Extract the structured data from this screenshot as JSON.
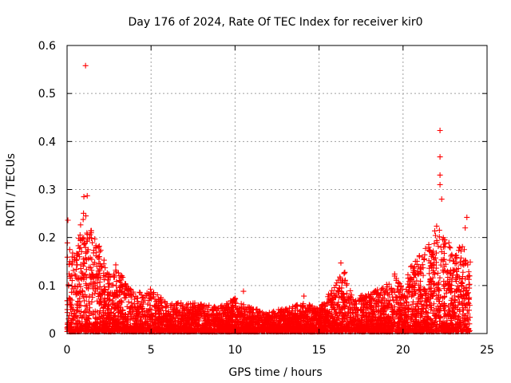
{
  "chart_data": {
    "type": "scatter",
    "title": "Day 176 of 2024, Rate Of TEC Index for receiver kir0",
    "xlabel": "GPS time / hours",
    "ylabel": "ROTI / TECUs",
    "xlim": [
      0,
      25
    ],
    "ylim": [
      0,
      0.6
    ],
    "xticks": [
      0,
      5,
      10,
      15,
      20,
      25
    ],
    "yticks": [
      0,
      0.1,
      0.2,
      0.3,
      0.4,
      0.5,
      0.6
    ],
    "xtick_labels": [
      "0",
      "5",
      "10",
      "15",
      "20",
      "25"
    ],
    "ytick_labels": [
      "0",
      "0.1",
      "0.2",
      "0.3",
      "0.4",
      "0.5",
      "0.6"
    ],
    "grid": true,
    "marker": "plus",
    "series_color": "#ff0000",
    "notable_points": [
      {
        "x": 1.1,
        "y": 0.558
      },
      {
        "x": 22.2,
        "y": 0.423
      },
      {
        "x": 22.2,
        "y": 0.368
      },
      {
        "x": 22.2,
        "y": 0.33
      },
      {
        "x": 22.2,
        "y": 0.31
      },
      {
        "x": 1.2,
        "y": 0.287
      },
      {
        "x": 1.0,
        "y": 0.285
      },
      {
        "x": 22.3,
        "y": 0.28
      },
      {
        "x": 0.05,
        "y": 0.236
      },
      {
        "x": 23.8,
        "y": 0.242
      },
      {
        "x": 23.7,
        "y": 0.22
      },
      {
        "x": 10.5,
        "y": 0.088
      },
      {
        "x": 14.1,
        "y": 0.078
      },
      {
        "x": 16.3,
        "y": 0.147
      },
      {
        "x": 19.5,
        "y": 0.124
      },
      {
        "x": 2.9,
        "y": 0.143
      }
    ],
    "envelope": {
      "x": [
        0,
        0.5,
        1.0,
        1.5,
        2.0,
        2.5,
        3.0,
        4.0,
        5.0,
        6.0,
        7.0,
        8.0,
        9.0,
        10.0,
        11.0,
        12.0,
        13.0,
        14.0,
        15.0,
        16.0,
        16.5,
        17.0,
        18.0,
        19.0,
        19.5,
        20.0,
        20.5,
        21.0,
        21.5,
        22.0,
        22.5,
        23.0,
        23.5,
        24.0
      ],
      "y": [
        0.19,
        0.15,
        0.27,
        0.22,
        0.17,
        0.12,
        0.13,
        0.08,
        0.09,
        0.06,
        0.06,
        0.06,
        0.05,
        0.07,
        0.05,
        0.04,
        0.05,
        0.06,
        0.05,
        0.1,
        0.13,
        0.07,
        0.08,
        0.1,
        0.12,
        0.09,
        0.14,
        0.16,
        0.18,
        0.22,
        0.2,
        0.17,
        0.18,
        0.15
      ]
    }
  }
}
